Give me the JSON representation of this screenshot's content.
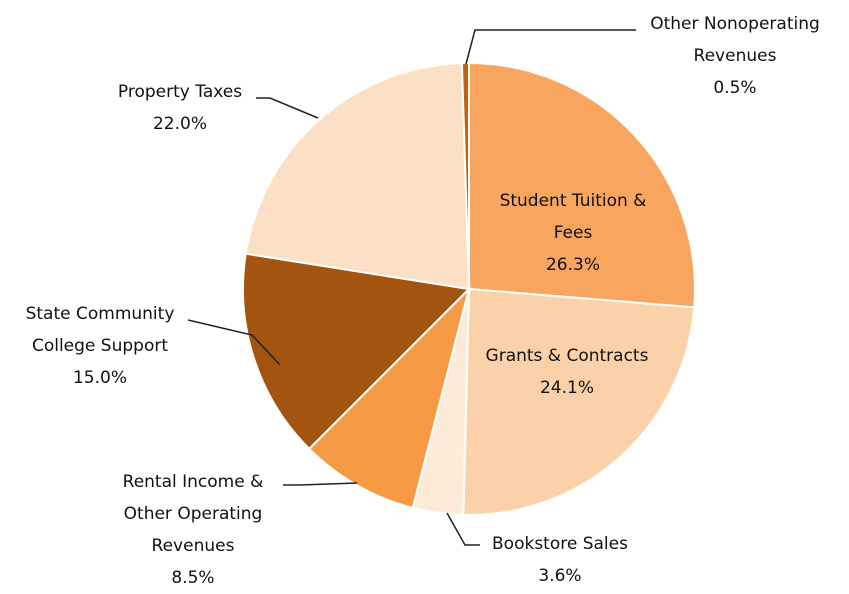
{
  "chart_data": {
    "type": "pie",
    "categories": [
      "Student Tuition & Fees",
      "Grants & Contracts",
      "Bookstore Sales",
      "Rental Income & Other Operating Revenues",
      "State Community College Support",
      "Property Taxes",
      "Other Nonoperating Revenues"
    ],
    "values": [
      26.3,
      24.1,
      3.6,
      8.5,
      15.0,
      22.0,
      0.5
    ],
    "value_labels": [
      "26.3%",
      "24.1%",
      "3.6%",
      "8.5%",
      "15.0%",
      "22.0%",
      "0.5%"
    ],
    "colors": [
      "#f8a560",
      "#fad1a8",
      "#fdebd9",
      "#f79a44",
      "#a3550f",
      "#fbe0c6",
      "#c4620f"
    ]
  }
}
